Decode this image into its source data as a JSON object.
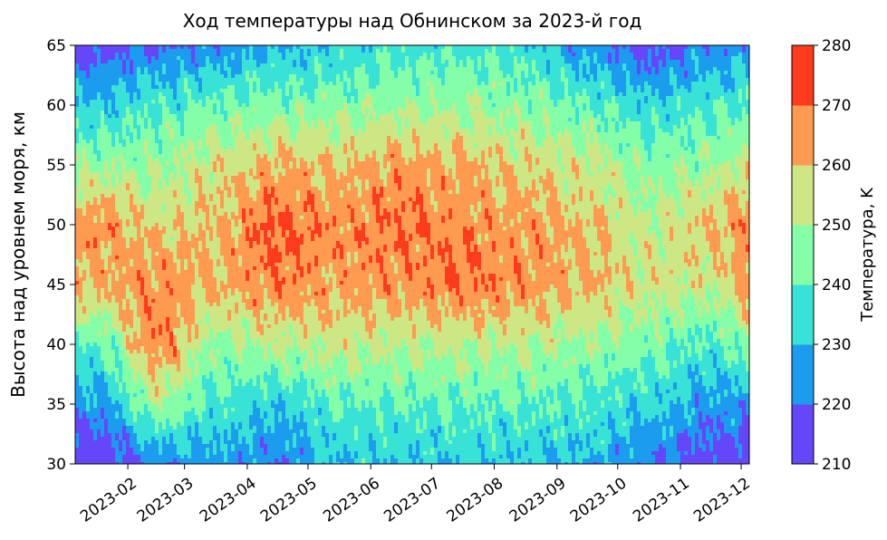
{
  "chart_data": {
    "type": "heatmap",
    "subtype": "filled-contour",
    "title": "Ход температуры над Обнинском за 2023-й год",
    "ylabel": "Высота над уровнем моря, км",
    "xlabel": "",
    "x_axis": {
      "kind": "date",
      "range": [
        "2023-01-06",
        "2023-12-05"
      ],
      "ticks": [
        "2023-02-01",
        "2023-03-01",
        "2023-04-01",
        "2023-05-01",
        "2023-06-01",
        "2023-07-01",
        "2023-08-01",
        "2023-09-01",
        "2023-10-01",
        "2023-11-01",
        "2023-12-01"
      ],
      "tick_labels": [
        "2023-02",
        "2023-03",
        "2023-04",
        "2023-05",
        "2023-06",
        "2023-07",
        "2023-08",
        "2023-09",
        "2023-10",
        "2023-11",
        "2023-12"
      ]
    },
    "y_axis": {
      "range": [
        30,
        65
      ],
      "ticks": [
        30,
        35,
        40,
        45,
        50,
        55,
        60,
        65
      ]
    },
    "colorbar": {
      "label": "Температура, K",
      "levels": [
        210,
        220,
        230,
        240,
        250,
        260,
        270,
        280
      ],
      "colors": [
        "#6546f9",
        "#1c9cee",
        "#38e2d7",
        "#84ffa8",
        "#cde785",
        "#ff9b51",
        "#ff3b1d"
      ]
    },
    "grid": false,
    "legend": "colorbar-right",
    "approx_bands_by_month": [
      {
        "month": "2023-01",
        "bottom": 210,
        "k35": 225,
        "k40": 240,
        "k45": 262,
        "k50": 266,
        "k55": 248,
        "k60": 232,
        "top": 215
      },
      {
        "month": "2023-02",
        "bottom": 222,
        "k35": 248,
        "k40": 268,
        "k45": 266,
        "k50": 258,
        "k55": 248,
        "k60": 238,
        "top": 220
      },
      {
        "month": "2023-03",
        "bottom": 225,
        "k35": 238,
        "k40": 248,
        "k45": 262,
        "k50": 260,
        "k55": 256,
        "k60": 242,
        "top": 222
      },
      {
        "month": "2023-04",
        "bottom": 222,
        "k35": 232,
        "k40": 252,
        "k45": 268,
        "k50": 272,
        "k55": 262,
        "k60": 244,
        "top": 228
      },
      {
        "month": "2023-05",
        "bottom": 230,
        "k35": 240,
        "k40": 254,
        "k45": 264,
        "k50": 266,
        "k55": 260,
        "k60": 246,
        "top": 232
      },
      {
        "month": "2023-06",
        "bottom": 231,
        "k35": 240,
        "k40": 252,
        "k45": 266,
        "k50": 270,
        "k55": 264,
        "k60": 248,
        "top": 236
      },
      {
        "month": "2023-07",
        "bottom": 231,
        "k35": 241,
        "k40": 252,
        "k45": 270,
        "k50": 266,
        "k55": 262,
        "k60": 248,
        "top": 238
      },
      {
        "month": "2023-08",
        "bottom": 231,
        "k35": 240,
        "k40": 252,
        "k45": 266,
        "k50": 264,
        "k55": 258,
        "k60": 246,
        "top": 234
      },
      {
        "month": "2023-09",
        "bottom": 228,
        "k35": 238,
        "k40": 248,
        "k45": 262,
        "k50": 260,
        "k55": 254,
        "k60": 240,
        "top": 224
      },
      {
        "month": "2023-10",
        "bottom": 222,
        "k35": 232,
        "k40": 244,
        "k45": 256,
        "k50": 252,
        "k55": 246,
        "k60": 234,
        "top": 214
      },
      {
        "month": "2023-11",
        "bottom": 214,
        "k35": 225,
        "k40": 238,
        "k45": 254,
        "k50": 260,
        "k55": 248,
        "k60": 238,
        "top": 222
      },
      {
        "month": "2023-12",
        "bottom": 210,
        "k35": 226,
        "k40": 252,
        "k45": 272,
        "k50": 274,
        "k55": 258,
        "k60": 240,
        "top": 226
      }
    ]
  }
}
